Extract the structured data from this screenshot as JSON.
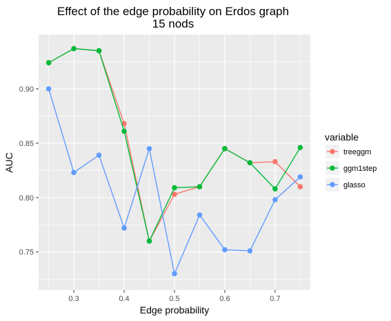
{
  "chart_data": {
    "type": "line",
    "title": "Effect of the edge probability on Erdos graph",
    "subtitle": "15 nods",
    "xlabel": "Edge probability",
    "ylabel": "AUC",
    "xlim": [
      0.23,
      0.77
    ],
    "ylim": [
      0.715,
      0.95
    ],
    "x_ticks": [
      0.3,
      0.4,
      0.5,
      0.6,
      0.7
    ],
    "x_tick_labels": [
      "0.3",
      "0.4",
      "0.5",
      "0.6",
      "0.7"
    ],
    "y_ticks": [
      0.75,
      0.8,
      0.85,
      0.9
    ],
    "y_tick_labels": [
      "0.75",
      "0.80",
      "0.85",
      "0.90"
    ],
    "grid": true,
    "legend_title": "variable",
    "legend_position": "right",
    "x": [
      0.25,
      0.3,
      0.35,
      0.4,
      0.45,
      0.5,
      0.55,
      0.6,
      0.65,
      0.7,
      0.75
    ],
    "series": [
      {
        "name": "treeggm",
        "color": "#F8766D",
        "values": [
          0.924,
          0.937,
          0.935,
          0.868,
          0.76,
          0.803,
          0.81,
          0.845,
          0.832,
          0.833,
          0.81
        ]
      },
      {
        "name": "ggm1step",
        "color": "#00BA38",
        "values": [
          0.924,
          0.937,
          0.935,
          0.861,
          0.76,
          0.809,
          0.81,
          0.845,
          0.832,
          0.808,
          0.846
        ]
      },
      {
        "name": "glasso",
        "color": "#619CFF",
        "values": [
          0.9,
          0.823,
          0.839,
          0.772,
          0.845,
          0.73,
          0.784,
          0.752,
          0.751,
          0.798,
          0.819
        ]
      }
    ]
  }
}
